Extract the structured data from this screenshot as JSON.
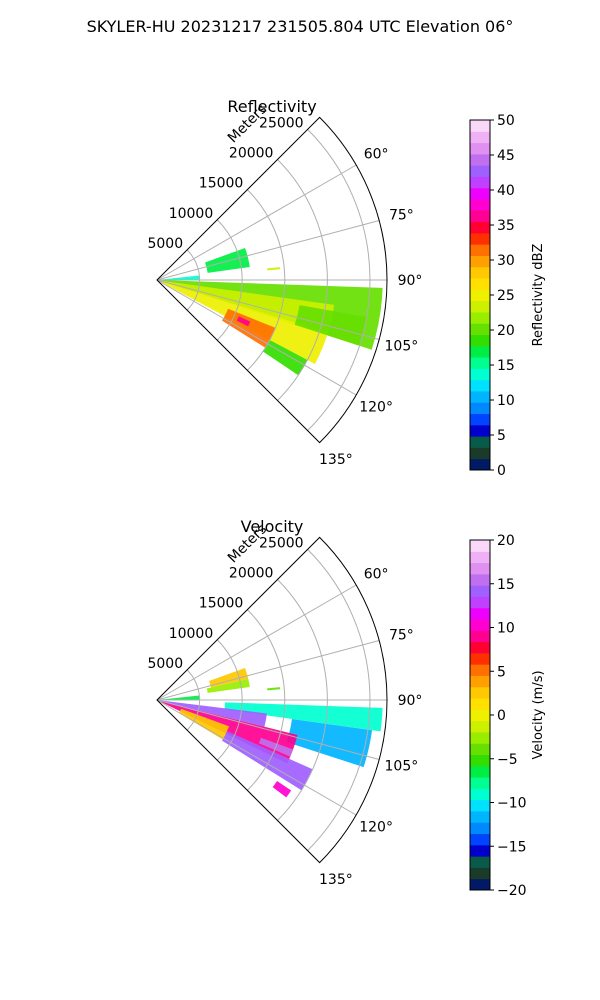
{
  "figure": {
    "title": "SKYLER-HU  20231217  231505.804 UTC Elevation 06°"
  },
  "chart_data": [
    {
      "type": "heatmap",
      "projection": "polar-sector",
      "title": "Reflectivity",
      "radial_label": "Meters",
      "radial_ticks": [
        "5000",
        "10000",
        "15000",
        "20000",
        "25000"
      ],
      "radial_values": [
        5000,
        10000,
        15000,
        20000,
        25000
      ],
      "rmax": 27000,
      "angle_ticks": [
        "60°",
        "75°",
        "90°",
        "105°",
        "120°",
        "135°"
      ],
      "angle_values": [
        60,
        75,
        90,
        105,
        120,
        135
      ],
      "theta_range": [
        45,
        135
      ],
      "grid": true,
      "colorbar": {
        "label": "Reflectivity dBZ",
        "range": [
          0,
          50
        ],
        "ticks": [
          "0",
          "5",
          "10",
          "15",
          "20",
          "25",
          "30",
          "35",
          "40",
          "45",
          "50"
        ],
        "colors": [
          "#001a66",
          "#1a3a2a",
          "#0a5a4a",
          "#0000cc",
          "#0044ff",
          "#0088ff",
          "#00b4ff",
          "#00e0ff",
          "#00ffd0",
          "#00ff90",
          "#00ee44",
          "#33dd00",
          "#66e000",
          "#99ee00",
          "#ccf000",
          "#eef000",
          "#ffe000",
          "#ffc800",
          "#ffa000",
          "#ff7000",
          "#ff3000",
          "#ff0030",
          "#ff0090",
          "#ff00d0",
          "#ee00ff",
          "#c040ff",
          "#a060ff",
          "#c070ee",
          "#e090f0",
          "#f0b0f5",
          "#fad8fa"
        ]
      },
      "echoes": [
        {
          "az_start": 92,
          "az_end": 108,
          "r_start": 0,
          "r_end": 26500,
          "value": 20
        },
        {
          "az_start": 98,
          "az_end": 107,
          "r_start": 0,
          "r_end": 21000,
          "value": 23
        },
        {
          "az_start": 107,
          "az_end": 118,
          "r_start": 0,
          "r_end": 21000,
          "value": 25
        },
        {
          "az_start": 112,
          "az_end": 122,
          "r_start": 9000,
          "r_end": 15000,
          "value": 32
        },
        {
          "az_start": 114,
          "az_end": 117,
          "r_start": 10500,
          "r_end": 12000,
          "value": 36
        },
        {
          "az_start": 118,
          "az_end": 124,
          "r_start": 15000,
          "r_end": 20000,
          "value": 18
        },
        {
          "az_start": 70,
          "az_end": 82,
          "r_start": 6000,
          "r_end": 11000,
          "value": 17
        },
        {
          "az_start": 84,
          "az_end": 90,
          "r_start": 0,
          "r_end": 5000,
          "value": 14
        },
        {
          "az_start": 100,
          "az_end": 108,
          "r_start": 17000,
          "r_end": 25000,
          "value": 20
        },
        {
          "az_start": 84,
          "az_end": 85,
          "r_start": 13000,
          "r_end": 14500,
          "value": 24
        }
      ]
    },
    {
      "type": "heatmap",
      "projection": "polar-sector",
      "title": "Velocity",
      "radial_label": "Meters",
      "radial_ticks": [
        "5000",
        "10000",
        "15000",
        "20000",
        "25000"
      ],
      "radial_values": [
        5000,
        10000,
        15000,
        20000,
        25000
      ],
      "rmax": 27000,
      "angle_ticks": [
        "60°",
        "75°",
        "90°",
        "105°",
        "120°",
        "135°"
      ],
      "angle_values": [
        60,
        75,
        90,
        105,
        120,
        135
      ],
      "theta_range": [
        45,
        135
      ],
      "grid": true,
      "colorbar": {
        "label": "Velocity (m/s)",
        "range": [
          -20,
          20
        ],
        "ticks": [
          "−20",
          "−15",
          "−10",
          "−5",
          "0",
          "5",
          "10",
          "15",
          "20"
        ],
        "colors": [
          "#001a66",
          "#1a3a2a",
          "#0a5a4a",
          "#0000cc",
          "#0044ff",
          "#0088ff",
          "#00b4ff",
          "#00e0ff",
          "#00ffd0",
          "#00ff90",
          "#00ee44",
          "#33dd00",
          "#66e000",
          "#99ee00",
          "#ccf000",
          "#eef000",
          "#ffe000",
          "#ffc800",
          "#ffa000",
          "#ff7000",
          "#ff3000",
          "#ff0030",
          "#ff0090",
          "#ff00d0",
          "#ee00ff",
          "#c040ff",
          "#a060ff",
          "#c070ee",
          "#e090f0",
          "#f0b0f5",
          "#fad8fa"
        ]
      },
      "echoes": [
        {
          "az_start": 92,
          "az_end": 98,
          "r_start": 8000,
          "r_end": 26500,
          "value": -9
        },
        {
          "az_start": 98,
          "az_end": 108,
          "r_start": 16000,
          "r_end": 25500,
          "value": -11
        },
        {
          "az_start": 97,
          "az_end": 104,
          "r_start": 0,
          "r_end": 13000,
          "value": 14
        },
        {
          "az_start": 104,
          "az_end": 116,
          "r_start": 0,
          "r_end": 17000,
          "value": 9
        },
        {
          "az_start": 110,
          "az_end": 121,
          "r_start": 3000,
          "r_end": 9000,
          "value": 2
        },
        {
          "az_start": 114,
          "az_end": 122,
          "r_start": 9000,
          "r_end": 20000,
          "value": 14
        },
        {
          "az_start": 110,
          "az_end": 113,
          "r_start": 13000,
          "r_end": 17000,
          "value": 16
        },
        {
          "az_start": 70,
          "az_end": 77,
          "r_start": 6500,
          "r_end": 11000,
          "value": 3
        },
        {
          "az_start": 77,
          "az_end": 82,
          "r_start": 6000,
          "r_end": 11000,
          "value": -3
        },
        {
          "az_start": 84,
          "az_end": 90,
          "r_start": 0,
          "r_end": 5000,
          "value": -6
        },
        {
          "az_start": 124,
          "az_end": 127,
          "r_start": 17000,
          "r_end": 19000,
          "value": 10
        },
        {
          "az_start": 84,
          "az_end": 85,
          "r_start": 13000,
          "r_end": 14500,
          "value": -4
        }
      ]
    }
  ]
}
